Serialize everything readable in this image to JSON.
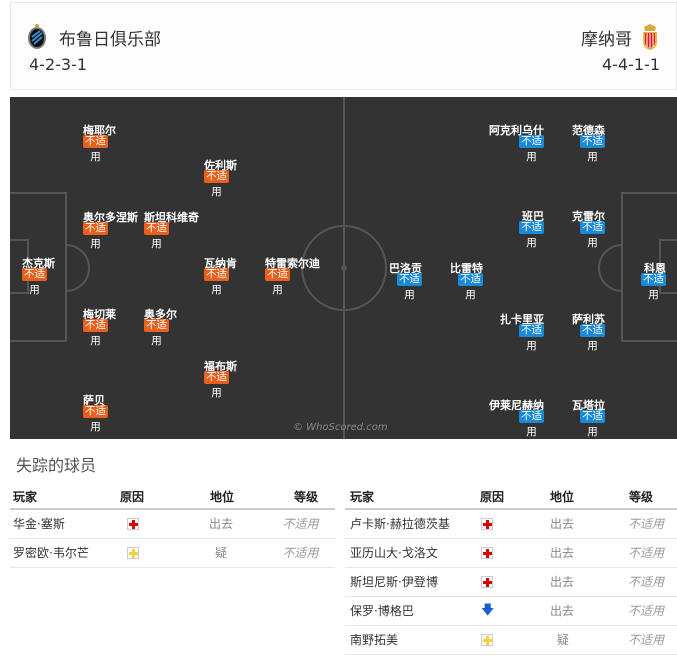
{
  "header": {
    "home": {
      "name": "布鲁日俱乐部",
      "formation": "4-2-3-1",
      "crest": "club-brugge-crest"
    },
    "away": {
      "name": "摩纳哥",
      "formation": "4-4-1-1",
      "crest": "monaco-crest"
    }
  },
  "pitch": {
    "badge_text": "不适",
    "badge_suffix": "用",
    "watermark": "© WhoScored.com",
    "colors": {
      "home": "#e8601c",
      "away": "#1a8ad8",
      "pitch": "#333333"
    },
    "home_players": [
      "梅耶尔",
      "佐利斯",
      "奥尔多涅斯",
      "斯坦科维奇",
      "杰克斯",
      "瓦纳肯",
      "特雷索尔迪",
      "梅切莱",
      "奥多尔",
      "福布斯",
      "萨贝"
    ],
    "away_players": [
      "阿克利乌什",
      "范德森",
      "班巴",
      "克雷尔",
      "巴洛贡",
      "比雷特",
      "科恩",
      "扎卡里亚",
      "萨利苏",
      "伊莱尼赫纳",
      "瓦塔拉"
    ]
  },
  "missing": {
    "title": "失踪的球员",
    "headers": [
      "玩家",
      "原因",
      "地位",
      "等级"
    ],
    "home": [
      {
        "player": "华金·塞斯",
        "reason": "injury",
        "status": "出去",
        "level": "不适用"
      },
      {
        "player": "罗密欧·韦尔芒",
        "reason": "doubtful",
        "status": "疑",
        "level": "不适用"
      }
    ],
    "away": [
      {
        "player": "卢卡斯·赫拉德茨基",
        "reason": "injury",
        "status": "出去",
        "level": "不适用"
      },
      {
        "player": "亚历山大·戈洛文",
        "reason": "injury",
        "status": "出去",
        "level": "不适用"
      },
      {
        "player": "斯坦尼斯·伊登博",
        "reason": "injury",
        "status": "出去",
        "level": "不适用"
      },
      {
        "player": "保罗·博格巴",
        "reason": "suspension-down-arrow",
        "status": "出去",
        "level": "不适用"
      },
      {
        "player": "南野拓美",
        "reason": "doubtful",
        "status": "疑",
        "level": "不适用"
      }
    ]
  }
}
